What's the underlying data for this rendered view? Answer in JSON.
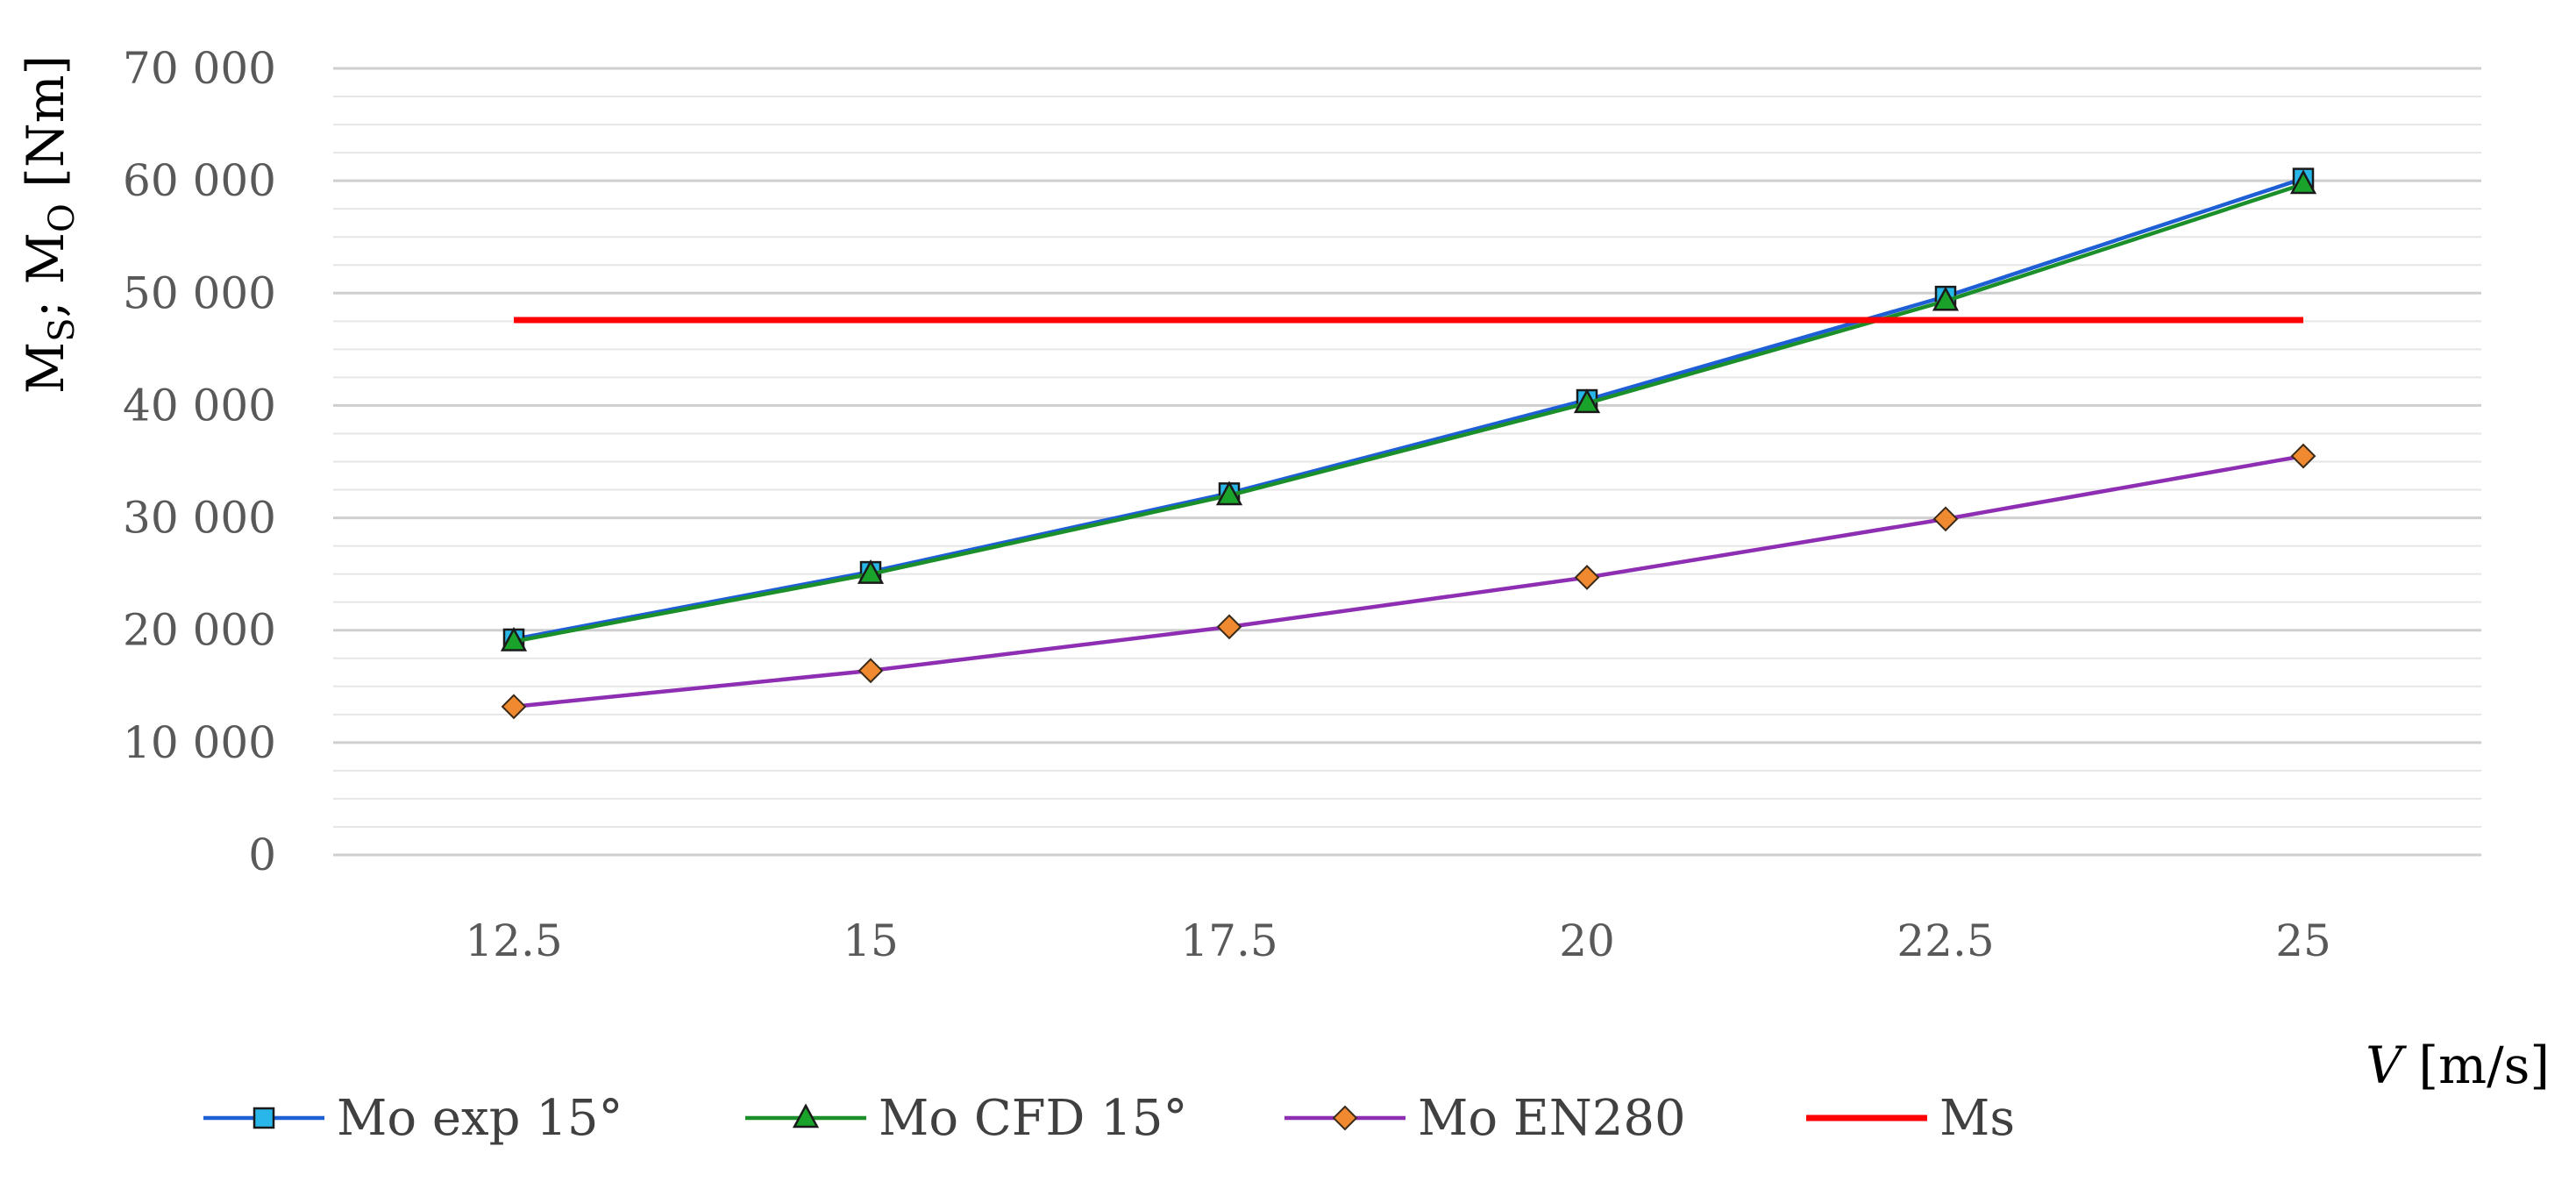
{
  "chart_data": {
    "type": "line",
    "x": [
      12.5,
      15,
      17.5,
      20,
      22.5,
      25
    ],
    "x_tick_labels": [
      "12.5",
      "15",
      "17.5",
      "20",
      "22.5",
      "25"
    ],
    "xlabel": {
      "var": "V",
      "unit": " [m/s]"
    },
    "ylabel": {
      "s1": "M",
      "sub1": "S",
      "mid": "; M",
      "sub2": "O",
      "unit": " [Nm]"
    },
    "ylim": [
      0,
      70000
    ],
    "y_ticks": [
      0,
      10000,
      20000,
      30000,
      40000,
      50000,
      60000,
      70000
    ],
    "y_tick_labels": [
      "0",
      "10 000",
      "20 000",
      "30 000",
      "40 000",
      "50 000",
      "60 000",
      "70 000"
    ],
    "grid": "horizontal major and minor",
    "legend_position": "bottom",
    "series": [
      {
        "name": "Mo exp 15°",
        "values": [
          19200,
          25200,
          32200,
          40500,
          49700,
          60200
        ],
        "line_color": "#1f5fd6",
        "marker": "square",
        "marker_color": "#29b6e8"
      },
      {
        "name": "Mo CFD 15°",
        "values": [
          19000,
          25000,
          32000,
          40200,
          49300,
          59700
        ],
        "line_color": "#1a8f2a",
        "marker": "triangle",
        "marker_color": "#1aa32a"
      },
      {
        "name": "Mo EN280",
        "values": [
          13200,
          16400,
          20300,
          24700,
          29900,
          35500
        ],
        "line_color": "#8e2fb3",
        "marker": "diamond",
        "marker_color": "#f08a30"
      },
      {
        "name": "Ms",
        "values": [
          47600,
          47600,
          47600,
          47600,
          47600,
          47600
        ],
        "line_color": "#ff0000",
        "marker": "none",
        "marker_color": "#ff0000"
      }
    ]
  }
}
